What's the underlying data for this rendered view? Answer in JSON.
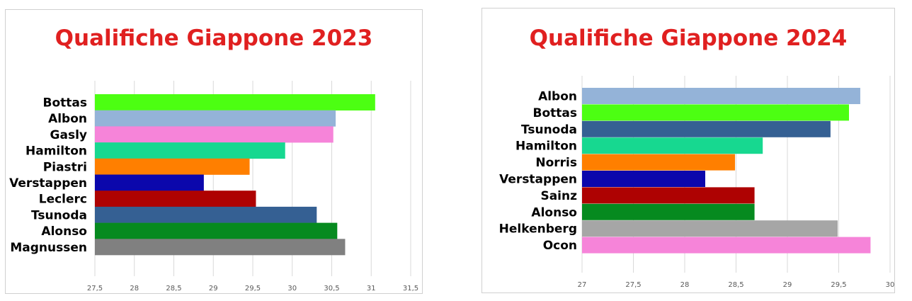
{
  "title_color": "#e02020",
  "chart_data": [
    {
      "type": "bar",
      "orientation": "horizontal",
      "title": "Qualifiche Giappone 2023",
      "xlabel": "",
      "ylabel": "",
      "xlim": [
        27.5,
        31.5
      ],
      "ticks": [
        27.5,
        28,
        28.5,
        29,
        29.5,
        30,
        30.5,
        31,
        31.5
      ],
      "tick_labels": [
        "27,5",
        "28",
        "28,5",
        "29",
        "29,5",
        "30",
        "30,5",
        "31",
        "31,5"
      ],
      "grid": true,
      "legend": "none",
      "categories": [
        "Bottas",
        "Albon",
        "Gasly",
        "Hamilton",
        "Piastri",
        "Verstappen",
        "Leclerc",
        "Tsunoda",
        "Alonso",
        "Magnussen"
      ],
      "values": [
        31.05,
        30.55,
        30.52,
        29.91,
        29.46,
        28.88,
        29.54,
        30.31,
        30.57,
        30.67
      ],
      "colors": [
        "#4cff12",
        "#94b3d8",
        "#f684d9",
        "#17d890",
        "#ff7f00",
        "#0b07ac",
        "#ae0202",
        "#356093",
        "#068a1f",
        "#808080"
      ]
    },
    {
      "type": "bar",
      "orientation": "horizontal",
      "title": "Qualifiche Giappone 2024",
      "xlabel": "",
      "ylabel": "",
      "xlim": [
        27,
        30
      ],
      "ticks": [
        27,
        27.5,
        28,
        28.5,
        29,
        29.5,
        30
      ],
      "tick_labels": [
        "27",
        "27,5",
        "28",
        "28,5",
        "29",
        "29,5",
        "30"
      ],
      "grid": true,
      "legend": "none",
      "categories": [
        "Albon",
        "Bottas",
        "Tsunoda",
        "Hamilton",
        "Norris",
        "Verstappen",
        "Sainz",
        "Alonso",
        "Helkenberg",
        "Ocon"
      ],
      "values": [
        29.71,
        29.6,
        29.42,
        28.76,
        28.49,
        28.2,
        28.68,
        28.68,
        29.49,
        29.81
      ],
      "colors": [
        "#94b3d8",
        "#4cff12",
        "#356093",
        "#17d890",
        "#ff7f00",
        "#0b07ac",
        "#ae0202",
        "#068a1f",
        "#a6a6a6",
        "#f684d9"
      ]
    }
  ]
}
